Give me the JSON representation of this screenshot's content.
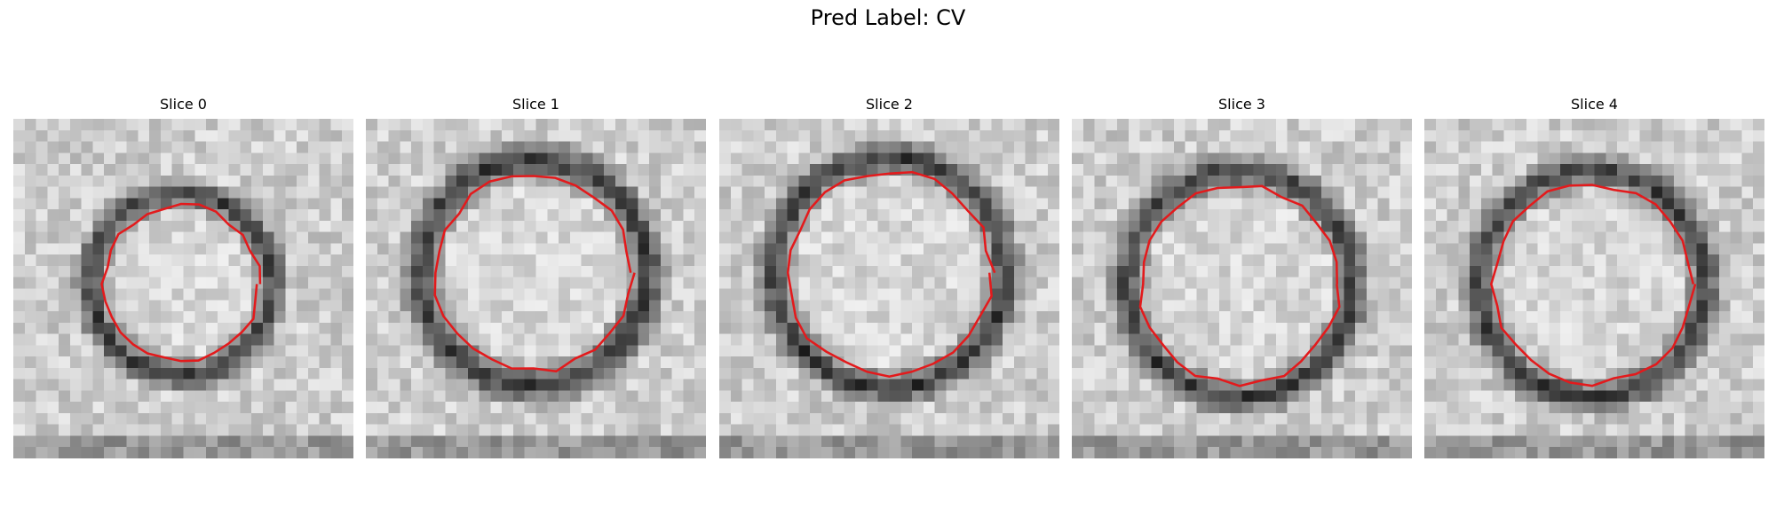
{
  "figure": {
    "suptitle": "Pred Label: CV",
    "contour_color": "#e31a1c"
  },
  "slices": [
    {
      "title": "Slice 0"
    },
    {
      "title": "Slice 1"
    },
    {
      "title": "Slice 2"
    },
    {
      "title": "Slice 3"
    },
    {
      "title": "Slice 4"
    }
  ]
}
